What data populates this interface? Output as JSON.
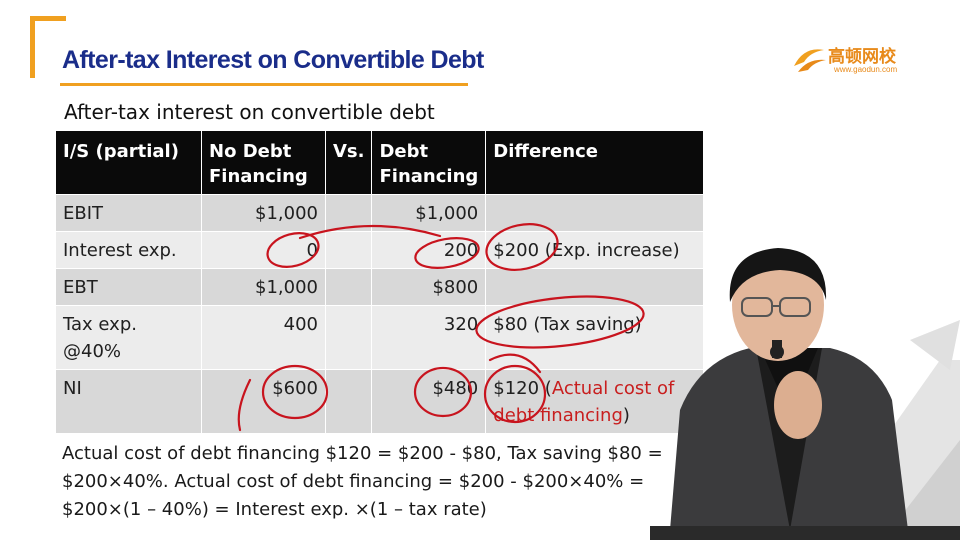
{
  "header": {
    "title": "After-tax Interest on Convertible Debt",
    "logo_name": "高顿网校",
    "logo_url": "www.gaodun.com"
  },
  "subtitle": "After-tax interest on convertible debt",
  "table": {
    "headers": {
      "c1": "I/S (partial)",
      "c2a": "No Debt",
      "c2b": "Financing",
      "c3": "Vs.",
      "c4a": "Debt",
      "c4b": "Financing",
      "c5": "Difference"
    },
    "rows": [
      {
        "label": "EBIT",
        "no_debt": "$1,000",
        "debt": "$1,000",
        "diff": ""
      },
      {
        "label": "Interest exp.",
        "no_debt": "0",
        "debt": "200",
        "diff": "$200 (Exp. increase)"
      },
      {
        "label": "EBT",
        "no_debt": "$1,000",
        "debt": "$800",
        "diff": ""
      },
      {
        "label_a": "Tax exp.",
        "label_b": "@40%",
        "no_debt": "400",
        "debt": "320",
        "diff": "$80 (Tax saving)"
      },
      {
        "label": "NI",
        "no_debt": "$600",
        "debt": "$480",
        "diff_a": "$120 (",
        "diff_b": "Actual cost of",
        "diff_c": "debt financing",
        "diff_d": ")"
      }
    ]
  },
  "note": {
    "line1": "Actual cost of debt financing $120 = $200 - $80, Tax saving $80 =",
    "line2": "$200×40%. Actual cost of debt financing = $200 - $200×40% =",
    "line3": "$200×(1 – 40%) = Interest exp. ×(1 – tax rate)"
  },
  "colors": {
    "title": "#1a2d8a",
    "accent": "#f0a020",
    "highlight": "#c81e1e",
    "header_bg": "#0a0a0a"
  }
}
